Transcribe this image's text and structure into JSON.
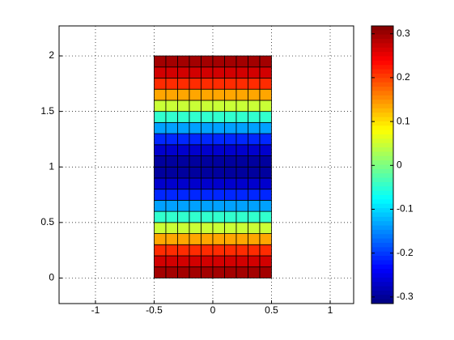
{
  "chart_data": {
    "type": "heatmap",
    "x_edges": [
      -0.5,
      -0.4,
      -0.3,
      -0.2,
      -0.1,
      0,
      0.1,
      0.2,
      0.3,
      0.4,
      0.5
    ],
    "y_edges": [
      0,
      0.1,
      0.2,
      0.3,
      0.4,
      0.5,
      0.6,
      0.7,
      0.8,
      0.9,
      1,
      1.1,
      1.2,
      1.3,
      1.4,
      1.5,
      1.6,
      1.7,
      1.8,
      1.9,
      2
    ],
    "z": [
      [
        0.296,
        0.296,
        0.296,
        0.296,
        0.296,
        0.296,
        0.296,
        0.296,
        0.296,
        0.296
      ],
      [
        0.267,
        0.267,
        0.267,
        0.267,
        0.267,
        0.267,
        0.267,
        0.267,
        0.267,
        0.267
      ],
      [
        0.212,
        0.212,
        0.212,
        0.212,
        0.212,
        0.212,
        0.212,
        0.212,
        0.212,
        0.212
      ],
      [
        0.136,
        0.136,
        0.136,
        0.136,
        0.136,
        0.136,
        0.136,
        0.136,
        0.136,
        0.136
      ],
      [
        0.047,
        0.047,
        0.047,
        0.047,
        0.047,
        0.047,
        0.047,
        0.047,
        0.047,
        0.047
      ],
      [
        -0.047,
        -0.047,
        -0.047,
        -0.047,
        -0.047,
        -0.047,
        -0.047,
        -0.047,
        -0.047,
        -0.047
      ],
      [
        -0.136,
        -0.136,
        -0.136,
        -0.136,
        -0.136,
        -0.136,
        -0.136,
        -0.136,
        -0.136,
        -0.136
      ],
      [
        -0.212,
        -0.212,
        -0.212,
        -0.212,
        -0.212,
        -0.212,
        -0.212,
        -0.212,
        -0.212,
        -0.212
      ],
      [
        -0.267,
        -0.267,
        -0.267,
        -0.267,
        -0.267,
        -0.267,
        -0.267,
        -0.267,
        -0.267,
        -0.267
      ],
      [
        -0.296,
        -0.296,
        -0.296,
        -0.296,
        -0.296,
        -0.296,
        -0.296,
        -0.296,
        -0.296,
        -0.296
      ],
      [
        -0.296,
        -0.296,
        -0.296,
        -0.296,
        -0.296,
        -0.296,
        -0.296,
        -0.296,
        -0.296,
        -0.296
      ],
      [
        -0.267,
        -0.267,
        -0.267,
        -0.267,
        -0.267,
        -0.267,
        -0.267,
        -0.267,
        -0.267,
        -0.267
      ],
      [
        -0.212,
        -0.212,
        -0.212,
        -0.212,
        -0.212,
        -0.212,
        -0.212,
        -0.212,
        -0.212,
        -0.212
      ],
      [
        -0.136,
        -0.136,
        -0.136,
        -0.136,
        -0.136,
        -0.136,
        -0.136,
        -0.136,
        -0.136,
        -0.136
      ],
      [
        -0.047,
        -0.047,
        -0.047,
        -0.047,
        -0.047,
        -0.047,
        -0.047,
        -0.047,
        -0.047,
        -0.047
      ],
      [
        0.047,
        0.047,
        0.047,
        0.047,
        0.047,
        0.047,
        0.047,
        0.047,
        0.047,
        0.047
      ],
      [
        0.136,
        0.136,
        0.136,
        0.136,
        0.136,
        0.136,
        0.136,
        0.136,
        0.136,
        0.136
      ],
      [
        0.212,
        0.212,
        0.212,
        0.212,
        0.212,
        0.212,
        0.212,
        0.212,
        0.212,
        0.212
      ],
      [
        0.267,
        0.267,
        0.267,
        0.267,
        0.267,
        0.267,
        0.267,
        0.267,
        0.267,
        0.267
      ],
      [
        0.296,
        0.296,
        0.296,
        0.296,
        0.296,
        0.296,
        0.296,
        0.296,
        0.296,
        0.296
      ]
    ],
    "colormap": "jet",
    "xlim": [
      -1.31,
      1.2
    ],
    "xticks": [
      -1,
      -0.5,
      0,
      0.5,
      1
    ],
    "ylim": [
      -0.23,
      2.27
    ],
    "yticks": [
      0,
      0.5,
      1,
      1.5,
      2
    ],
    "clim": [
      -0.315,
      0.318
    ],
    "cticks": [
      -0.3,
      -0.2,
      -0.1,
      0,
      0.1,
      0.2,
      0.3
    ],
    "grid": true
  }
}
